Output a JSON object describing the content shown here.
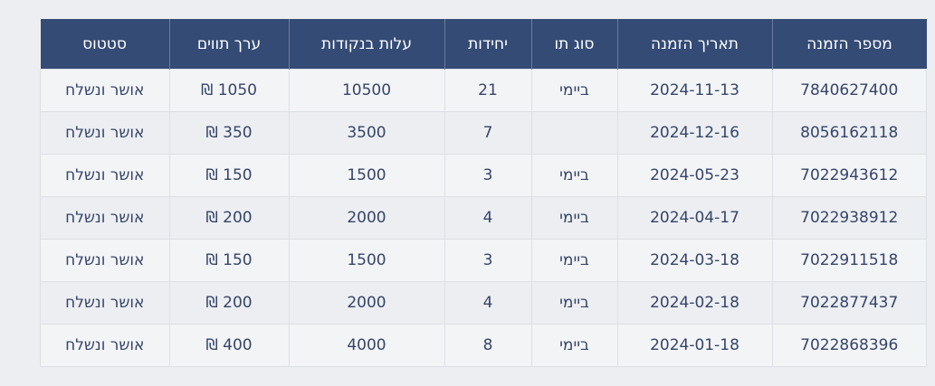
{
  "table": {
    "headers": {
      "order_number": "מספר הזמנה",
      "order_date": "תאריך הזמנה",
      "type": "סוג תו",
      "units": "יחידות",
      "cost_points": "עלות בנקודות",
      "value": "ערך תווים",
      "status": "סטטוס"
    },
    "rows": [
      {
        "order_number": "7840627400",
        "order_date": "2024-11-13",
        "type": "ביימי",
        "units": "21",
        "cost_points": "10500",
        "value": "1050 ₪",
        "status": "אושר ונשלח"
      },
      {
        "order_number": "8056162118",
        "order_date": "2024-12-16",
        "type": "",
        "units": "7",
        "cost_points": "3500",
        "value": "350 ₪",
        "status": "אושר ונשלח"
      },
      {
        "order_number": "7022943612",
        "order_date": "2024-05-23",
        "type": "ביימי",
        "units": "3",
        "cost_points": "1500",
        "value": "150 ₪",
        "status": "אושר ונשלח"
      },
      {
        "order_number": "7022938912",
        "order_date": "2024-04-17",
        "type": "ביימי",
        "units": "4",
        "cost_points": "2000",
        "value": "200 ₪",
        "status": "אושר ונשלח"
      },
      {
        "order_number": "7022911518",
        "order_date": "2024-03-18",
        "type": "ביימי",
        "units": "3",
        "cost_points": "1500",
        "value": "150 ₪",
        "status": "אושר ונשלח"
      },
      {
        "order_number": "7022877437",
        "order_date": "2024-02-18",
        "type": "ביימי",
        "units": "4",
        "cost_points": "2000",
        "value": "200 ₪",
        "status": "אושר ונשלח"
      },
      {
        "order_number": "7022868396",
        "order_date": "2024-01-18",
        "type": "ביימי",
        "units": "8",
        "cost_points": "4000",
        "value": "400 ₪",
        "status": "אושר ונשלח"
      }
    ]
  },
  "colors": {
    "header_bg": "#344b75",
    "header_text": "#ffffff",
    "cell_text": "#35456a",
    "page_bg": "#eceef2"
  }
}
